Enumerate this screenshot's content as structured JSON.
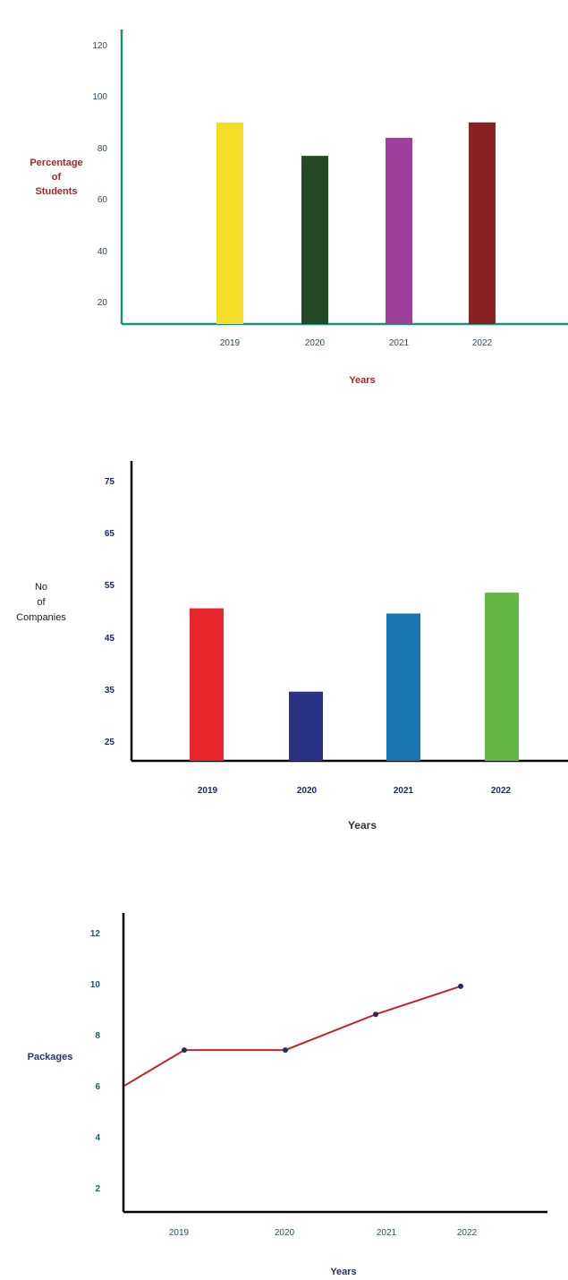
{
  "chart_data": [
    {
      "type": "bar",
      "categories": [
        "2019",
        "2020",
        "2021",
        "2022"
      ],
      "values": [
        90,
        77,
        84,
        90
      ],
      "colors": [
        "#f5de2a",
        "#234a22",
        "#9d3f9b",
        "#8b2124"
      ],
      "ylabel_lines": [
        "Percentage",
        "of",
        "Students"
      ],
      "xlabel": "Years",
      "yticks": [
        "120",
        "100",
        "80",
        "60",
        "40",
        "20"
      ],
      "ylim": [
        10,
        120
      ],
      "label_color": "#a0282c",
      "tick_color": "#2c4a5e",
      "axis_color": "#1f8f78",
      "grid": false
    },
    {
      "type": "bar",
      "categories": [
        "2019",
        "2020",
        "2021",
        "2022"
      ],
      "values": [
        50.5,
        34.5,
        49.5,
        53.5
      ],
      "colors": [
        "#e8262e",
        "#2b3185",
        "#1877b0",
        "#63b546"
      ],
      "ylabel_lines": [
        "No",
        "of",
        "Companies"
      ],
      "xlabel": "Years",
      "yticks": [
        "75",
        "65",
        "55",
        "45",
        "35",
        "25"
      ],
      "ylim": [
        20,
        76
      ],
      "label_color": "#1a1a1a",
      "tick_color": "#1d2a6b",
      "axis_color": "#000000",
      "grid": false
    },
    {
      "type": "line",
      "categories": [
        "2019",
        "2020",
        "2021",
        "2022"
      ],
      "values": [
        7.4,
        7.4,
        8.8,
        9.9
      ],
      "start_value": 6.0,
      "line_color": "#c0272d",
      "point_color": "#2a2a5a",
      "ylabel": "Packages",
      "xlabel": "Years",
      "yticks": [
        "12",
        "10",
        "8",
        "6",
        "4",
        "2"
      ],
      "ylim": [
        1,
        12.5
      ],
      "label_color": "#2b2f7a",
      "tick_color": "#1c5a68",
      "axis_color": "#000000",
      "grid": false
    }
  ]
}
